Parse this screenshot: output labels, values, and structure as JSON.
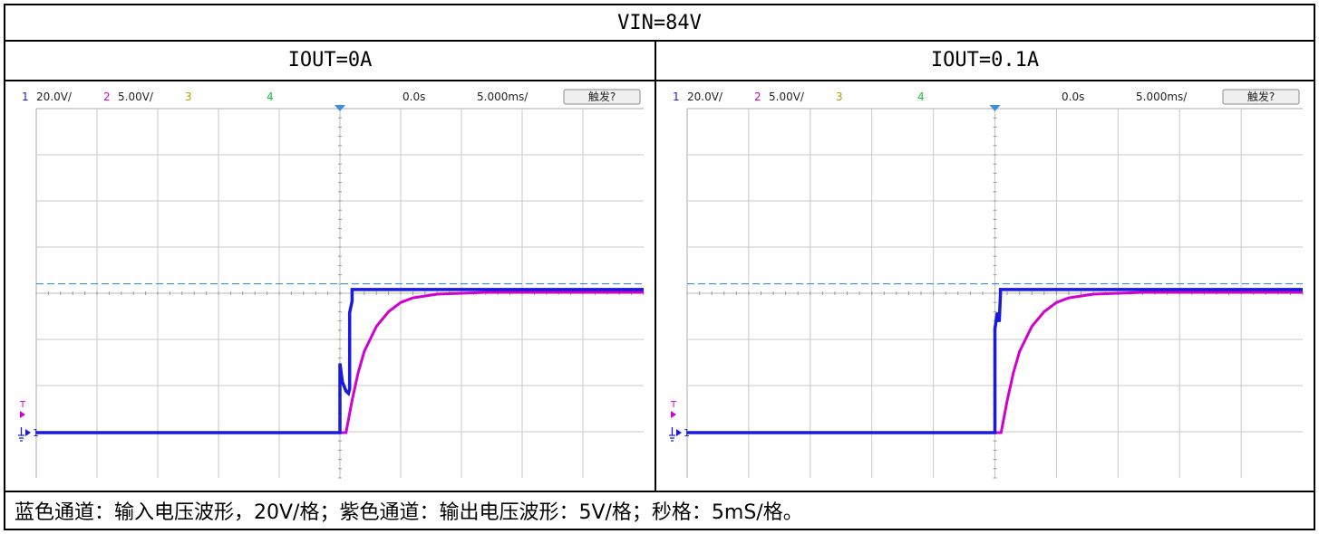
{
  "table": {
    "title": "VIN=84V",
    "left_label": "IOUT=0A",
    "right_label": "IOUT=0.1A",
    "caption": "蓝色通道：输入电压波形，20V/格；紫色通道：输出电压波形：5V/格；秒格：5mS/格。"
  },
  "scope_header": {
    "ch1_num": "1",
    "ch1_scale": "20.0V/",
    "ch2_num": "2",
    "ch2_scale": "5.00V/",
    "ch3_num": "3",
    "ch4_num": "4",
    "time_pos": "0.0s",
    "time_scale": "5.000ms/",
    "trigger_button": "触发?",
    "trigger_marker": "T",
    "ch1_marker": "1"
  },
  "colors": {
    "ch1": "#1a1adc",
    "ch2": "#d000d0",
    "ch3": "#b0a000",
    "ch4": "#20c040",
    "trigger_level": "#3a8fd8",
    "grid": "#c8c8c8"
  },
  "chart_data": [
    {
      "type": "line",
      "title": "IOUT=0A",
      "x_unit": "ms",
      "xlim": [
        -25,
        25
      ],
      "grid": true,
      "series": [
        {
          "name": "1",
          "unit": "V",
          "x": [
            -25,
            0,
            0,
            0.2,
            0.5,
            0.7,
            0.8,
            0.8,
            1.0,
            1.0,
            25
          ],
          "y": [
            0,
            0,
            30,
            22,
            18,
            17,
            19,
            52,
            57,
            62,
            62
          ]
        },
        {
          "name": "2",
          "unit": "V",
          "x": [
            -25,
            0.5,
            1,
            1.5,
            2,
            3,
            4,
            5,
            6,
            8,
            10,
            12,
            15,
            25
          ],
          "y": [
            0,
            0,
            3.5,
            6.5,
            8.8,
            11.5,
            13.1,
            14.1,
            14.6,
            15.0,
            15.1,
            15.2,
            15.2,
            15.2
          ]
        }
      ]
    },
    {
      "type": "line",
      "title": "IOUT=0.1A",
      "x_unit": "ms",
      "xlim": [
        -25,
        25
      ],
      "grid": true,
      "series": [
        {
          "name": "1",
          "unit": "V",
          "x": [
            -25,
            0,
            0,
            0.2,
            0.35,
            0.45,
            0.45,
            25
          ],
          "y": [
            0,
            0,
            45,
            52,
            48,
            60,
            62,
            62
          ]
        },
        {
          "name": "2",
          "unit": "V",
          "x": [
            -25,
            0.5,
            1,
            1.5,
            2,
            3,
            4,
            5,
            6,
            8,
            10,
            12,
            15,
            25
          ],
          "y": [
            0,
            0,
            3.5,
            6.5,
            8.8,
            11.5,
            13.1,
            14.1,
            14.6,
            15.0,
            15.1,
            15.2,
            15.2,
            15.2
          ]
        }
      ]
    }
  ]
}
